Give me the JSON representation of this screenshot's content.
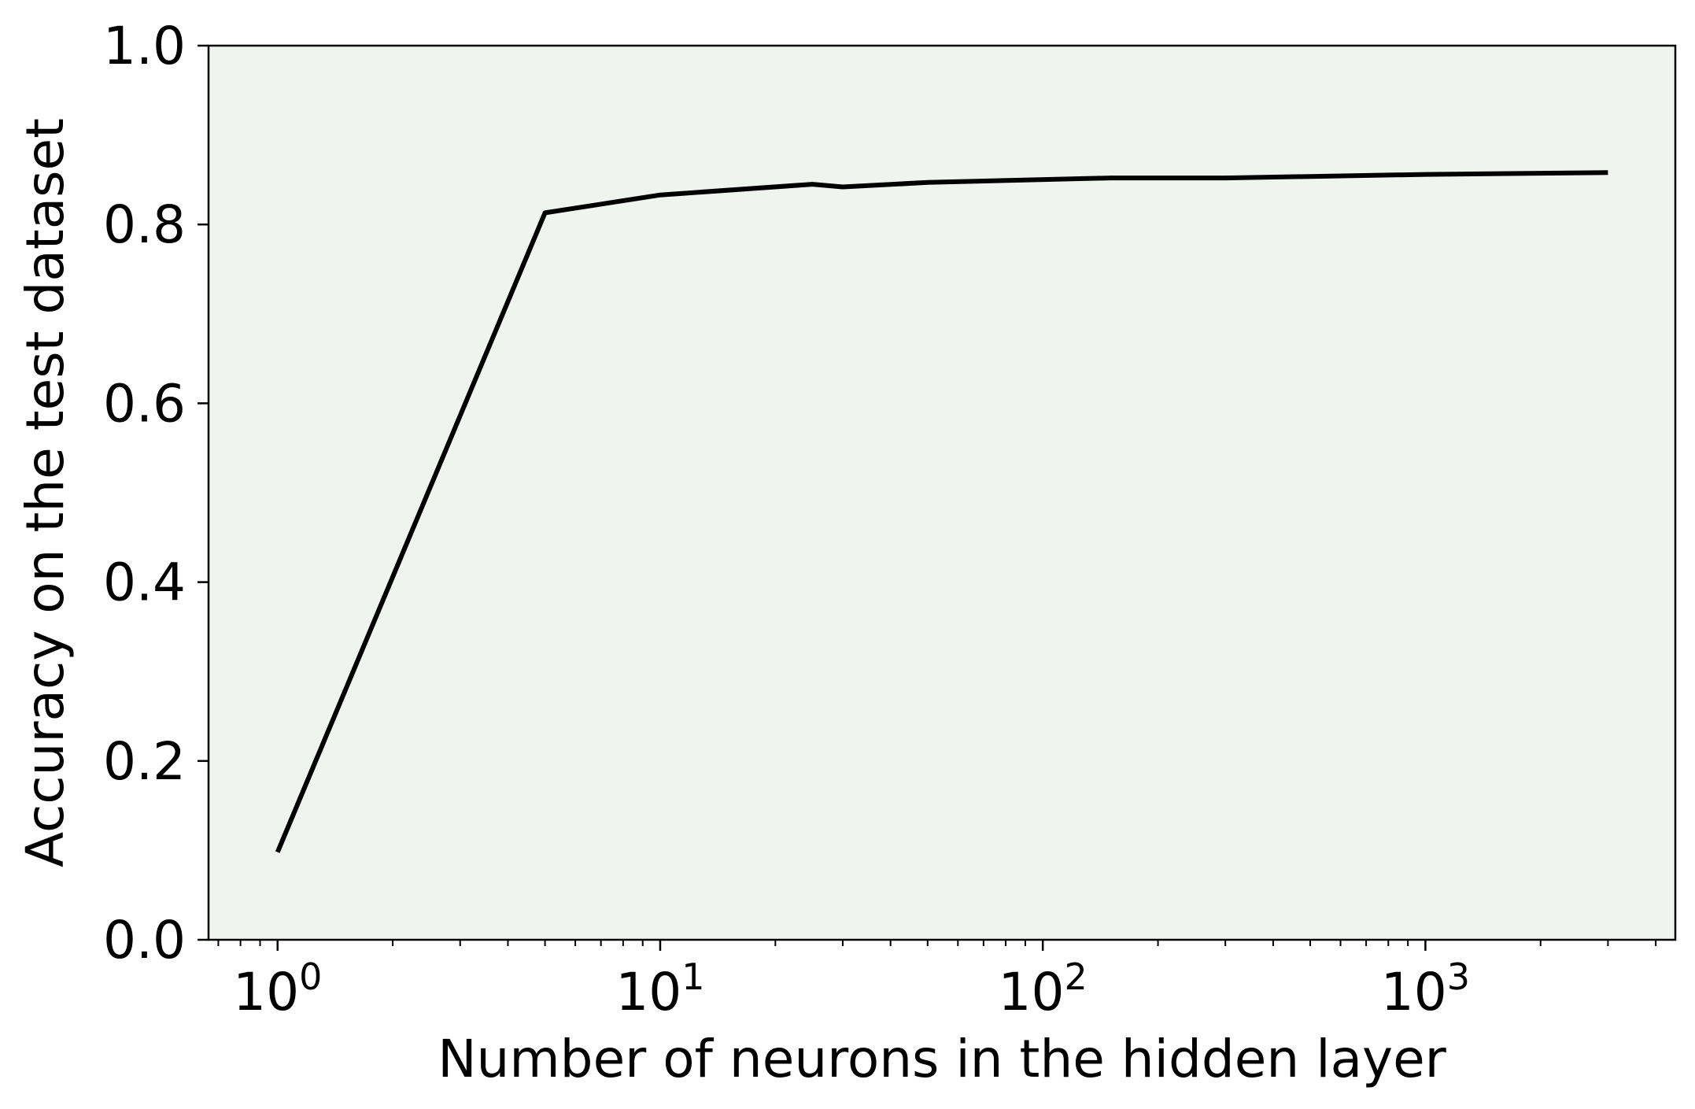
{
  "chart_data": {
    "type": "line",
    "title": "",
    "xlabel": "Number of neurons in the hidden layer",
    "ylabel": "Accuracy on the test dataset",
    "xscale": "log",
    "xlim": [
      0.66,
      4500
    ],
    "ylim": [
      0.0,
      1.0
    ],
    "x_ticks": [
      {
        "value": 1,
        "base": "10",
        "exp": "0"
      },
      {
        "value": 10,
        "base": "10",
        "exp": "1"
      },
      {
        "value": 100,
        "base": "10",
        "exp": "2"
      },
      {
        "value": 1000,
        "base": "10",
        "exp": "3"
      }
    ],
    "y_ticks": [
      "0.0",
      "0.2",
      "0.4",
      "0.6",
      "0.8",
      "1.0"
    ],
    "grid": false,
    "legend": "none",
    "background_color": "#eff4ef",
    "line_color": "#000000",
    "series": [
      {
        "x": [
          1,
          5,
          10,
          25,
          30,
          50,
          150,
          300,
          1000,
          3000
        ],
        "y": [
          0.098,
          0.813,
          0.833,
          0.845,
          0.842,
          0.847,
          0.852,
          0.852,
          0.856,
          0.858
        ]
      }
    ]
  }
}
